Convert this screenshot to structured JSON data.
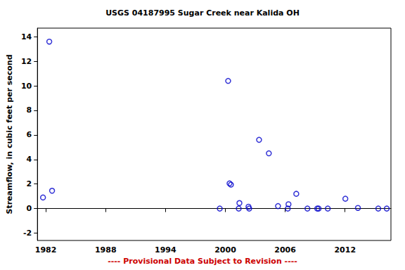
{
  "chart_data": {
    "type": "scatter",
    "title": "USGS 04187995 Sugar Creek near Kalida OH",
    "ylabel": "Streamflow, in cubic feet per second",
    "footer": "---- Provisional Data Subject to Revision ----",
    "x": [
      1981.72,
      1982.35,
      1982.63,
      1999.44,
      2000.28,
      2000.42,
      2000.56,
      2001.41,
      2001.34,
      2002.32,
      2002.39,
      2003.38,
      2004.36,
      2005.28,
      2006.26,
      2006.33,
      2007.11,
      2008.23,
      2009.21,
      2009.35,
      2010.27,
      2012.03,
      2013.29,
      2015.33,
      2016.18
    ],
    "values": [
      0.9,
      13.6,
      1.45,
      0.0,
      10.4,
      2.05,
      1.95,
      0.45,
      0.0,
      0.15,
      0.0,
      5.6,
      4.5,
      0.2,
      0.0,
      0.35,
      1.2,
      0.0,
      0.0,
      0.0,
      0.0,
      0.8,
      0.05,
      0.0,
      0.0
    ],
    "color": "#0000cc",
    "marker": "open_circle",
    "xlim": [
      1981.16,
      2016.6
    ],
    "xticks": [
      1982,
      1988,
      1994,
      2000,
      2006,
      2012
    ],
    "ylim": [
      -2.6,
      14.7
    ],
    "yticks": [
      -2,
      0,
      2,
      4,
      6,
      8,
      10,
      12,
      14
    ],
    "grid": false
  }
}
